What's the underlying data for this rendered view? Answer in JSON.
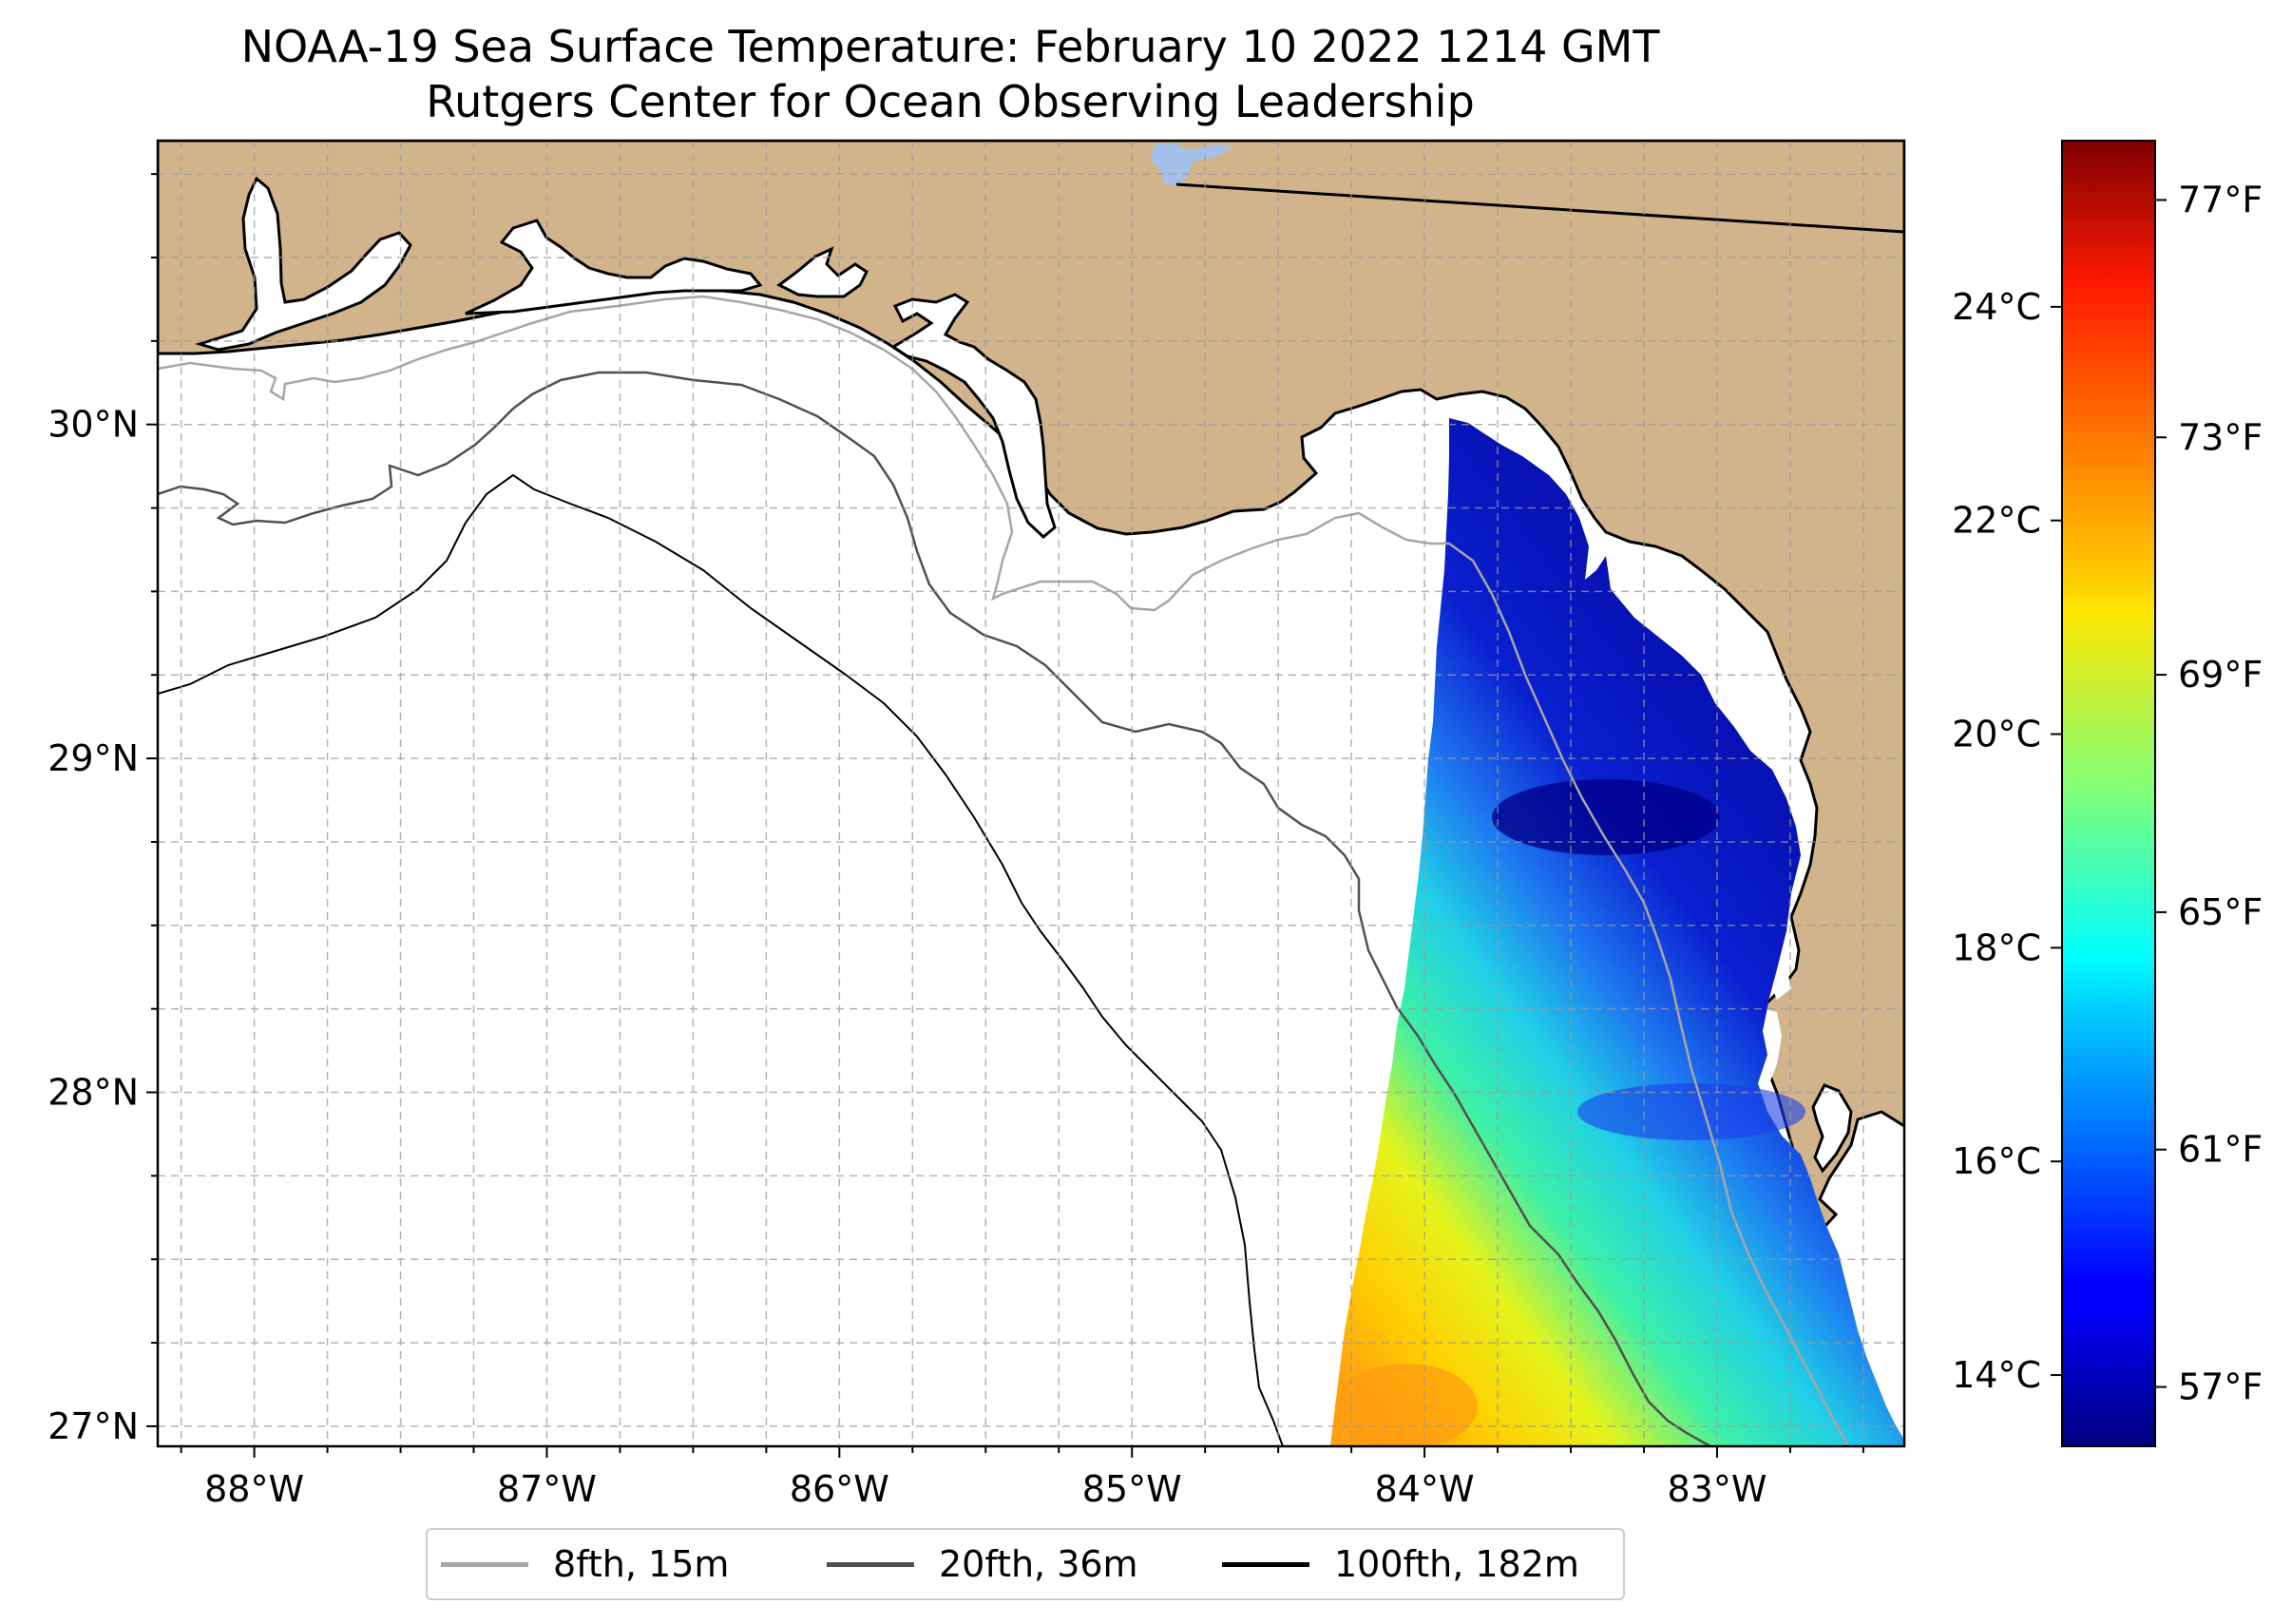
{
  "title": {
    "line1": "NOAA-19 Sea Surface Temperature: February 10 2022 1214 GMT",
    "line2": "Rutgers Center for Ocean Observing Leadership"
  },
  "map": {
    "lon_range": [
      -88.33,
      -82.36
    ],
    "lat_range": [
      26.94,
      30.85
    ],
    "land_color": "#d2b48c",
    "water_color": "#ffffff",
    "lake_color": "#a4c0e8",
    "grid": true,
    "x_ticks": [
      {
        "value": -88,
        "label": "88°W"
      },
      {
        "value": -87,
        "label": "87°W"
      },
      {
        "value": -86,
        "label": "86°W"
      },
      {
        "value": -85,
        "label": "85°W"
      },
      {
        "value": -84,
        "label": "84°W"
      },
      {
        "value": -83,
        "label": "83°W"
      }
    ],
    "y_ticks": [
      {
        "value": 30,
        "label": "30°N"
      },
      {
        "value": 29,
        "label": "29°N"
      },
      {
        "value": 28,
        "label": "28°N"
      },
      {
        "value": 27,
        "label": "27°N"
      }
    ]
  },
  "legend": {
    "items": [
      {
        "label": "8fth, 15m",
        "color": "#a6a6a6"
      },
      {
        "label": "20fth, 36m",
        "color": "#505050"
      },
      {
        "label": "100fth, 182m",
        "color": "#000000"
      }
    ],
    "placement": "bottom-center"
  },
  "colorbar": {
    "colormap": "jet",
    "celsius_ticks": [
      {
        "value": 24,
        "label": "24°C"
      },
      {
        "value": 22,
        "label": "22°C"
      },
      {
        "value": 20,
        "label": "20°C"
      },
      {
        "value": 18,
        "label": "18°C"
      },
      {
        "value": 16,
        "label": "16°C"
      },
      {
        "value": 14,
        "label": "14°C"
      }
    ],
    "fahrenheit_ticks": [
      {
        "value": 77,
        "label": "77°F"
      },
      {
        "value": 73,
        "label": "73°F"
      },
      {
        "value": 69,
        "label": "69°F"
      },
      {
        "value": 65,
        "label": "65°F"
      },
      {
        "value": 61,
        "label": "61°F"
      },
      {
        "value": 57,
        "label": "57°F"
      }
    ]
  }
}
